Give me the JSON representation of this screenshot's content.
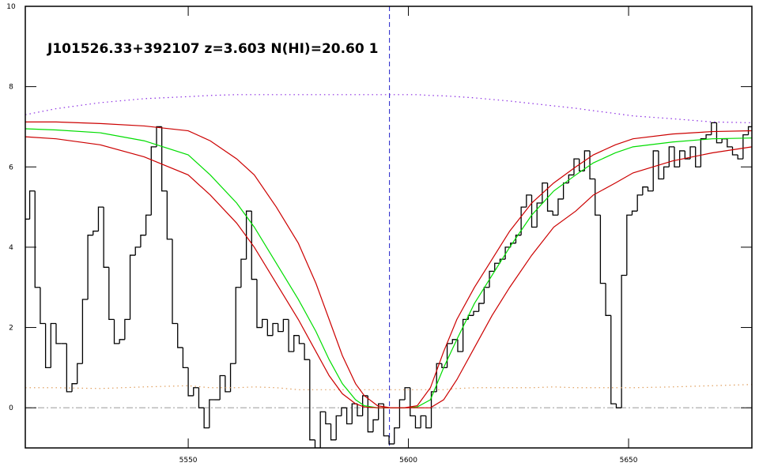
{
  "chart_data": {
    "type": "line",
    "title": "J101526.33+392107 z=3.603 N(HI)=20.60 1",
    "xlim": [
      5513,
      5678
    ],
    "ylim": [
      -1,
      10
    ],
    "xticks": [
      5550,
      5600,
      5650
    ],
    "yticks": [
      0,
      2,
      4,
      6,
      8,
      10
    ],
    "vline": {
      "value": 5595.7,
      "color": "#2020c8"
    },
    "hline": {
      "value": 0,
      "color": "#999999"
    },
    "series": [
      {
        "style": "steps",
        "color": "#000000",
        "x": [
          5513.4,
          5514.6,
          5515.8,
          5517,
          5518.2,
          5519.4,
          5520.6,
          5521.8,
          5523,
          5524.2,
          5525.4,
          5526.6,
          5527.8,
          5529,
          5530.2,
          5531.4,
          5532.6,
          5533.8,
          5535,
          5536.2,
          5537.4,
          5538.6,
          5539.8,
          5541,
          5542.2,
          5543.4,
          5544.6,
          5545.8,
          5547,
          5548.2,
          5549.4,
          5550.6,
          5551.8,
          5553,
          5554.2,
          5555.4,
          5556.6,
          5557.8,
          5559,
          5560.2,
          5561.4,
          5562.6,
          5563.8,
          5565,
          5566.2,
          5567.4,
          5568.6,
          5569.8,
          5571,
          5572.2,
          5573.4,
          5574.6,
          5575.8,
          5577,
          5578.2,
          5579.4,
          5580.6,
          5581.8,
          5583,
          5584.2,
          5585.4,
          5586.6,
          5587.8,
          5589,
          5590.2,
          5591.4,
          5592.6,
          5593.8,
          5595,
          5596.2,
          5597.4,
          5598.6,
          5599.8,
          5601,
          5602.2,
          5603.4,
          5604.6,
          5605.8,
          5607,
          5608.2,
          5609.4,
          5610.6,
          5611.8,
          5613,
          5614.2,
          5615.4,
          5616.6,
          5617.8,
          5619,
          5620.2,
          5621.4,
          5622.6,
          5623.8,
          5625,
          5626.2,
          5627.4,
          5628.6,
          5629.8,
          5631,
          5632.2,
          5633.4,
          5634.6,
          5635.8,
          5637,
          5638.2,
          5639.4,
          5640.6,
          5641.8,
          5643,
          5644.2,
          5645.4,
          5646.6,
          5647.8,
          5649,
          5650.2,
          5651.4,
          5652.6,
          5653.8,
          5655,
          5656.2,
          5657.4,
          5658.6,
          5659.8,
          5661,
          5662.2,
          5663.4,
          5664.6,
          5665.8,
          5667,
          5668.2,
          5669.4,
          5670.6,
          5671.8,
          5673,
          5674.2,
          5675.4,
          5676.6,
          5677.8
        ],
        "values": [
          4.7,
          5.4,
          3.0,
          2.1,
          1.0,
          2.1,
          1.6,
          1.6,
          0.4,
          0.6,
          1.1,
          2.7,
          4.3,
          4.4,
          5.0,
          3.5,
          2.2,
          1.6,
          1.7,
          2.2,
          3.8,
          4.0,
          4.3,
          4.8,
          6.5,
          7.0,
          5.4,
          4.2,
          2.1,
          1.5,
          1.0,
          0.3,
          0.5,
          0.0,
          -0.5,
          0.2,
          0.2,
          0.8,
          0.4,
          1.1,
          3.0,
          3.7,
          4.9,
          3.2,
          2.0,
          2.2,
          1.8,
          2.1,
          1.9,
          2.2,
          1.4,
          1.8,
          1.6,
          1.2,
          -0.8,
          -1.0,
          -0.1,
          -0.4,
          -0.8,
          -0.2,
          0.0,
          -0.4,
          0.1,
          -0.2,
          0.3,
          -0.6,
          -0.3,
          0.1,
          -0.7,
          -0.9,
          -0.5,
          0.2,
          0.5,
          -0.2,
          -0.5,
          -0.2,
          -0.5,
          0.4,
          1.1,
          1.0,
          1.6,
          1.7,
          1.4,
          2.2,
          2.3,
          2.4,
          2.6,
          3.0,
          3.4,
          3.6,
          3.7,
          4.0,
          4.1,
          4.3,
          5.0,
          5.3,
          4.5,
          5.1,
          5.6,
          4.9,
          4.8,
          5.2,
          5.6,
          5.8,
          6.2,
          5.9,
          6.4,
          5.7,
          4.8,
          3.1,
          2.3,
          0.1,
          0.0,
          3.3,
          4.8,
          4.9,
          5.3,
          5.5,
          5.4,
          6.4,
          5.7,
          6.0,
          6.5,
          6.0,
          6.4,
          6.2,
          6.5,
          6.0,
          6.7,
          6.8,
          7.1,
          6.6,
          6.7,
          6.5,
          6.3,
          6.2,
          6.8,
          7.0
        ]
      },
      {
        "style": "dotted",
        "color": "#8a2be2",
        "x": [
          5513,
          5520,
          5530,
          5540,
          5550,
          5555,
          5561,
          5565,
          5570,
          5575,
          5579,
          5582,
          5585,
          5588,
          5590,
          5593,
          5596,
          5599,
          5602,
          5605,
          5608,
          5611,
          5615,
          5619,
          5623,
          5628,
          5633,
          5638,
          5642,
          5647,
          5651,
          5660,
          5669,
          5678
        ],
        "values": [
          7.3,
          7.45,
          7.6,
          7.7,
          7.75,
          7.78,
          7.8,
          7.8,
          7.8,
          7.8,
          7.8,
          7.8,
          7.8,
          7.8,
          7.8,
          7.8,
          7.8,
          7.8,
          7.8,
          7.78,
          7.77,
          7.75,
          7.72,
          7.68,
          7.64,
          7.58,
          7.52,
          7.46,
          7.4,
          7.33,
          7.27,
          7.2,
          7.12,
          7.1
        ]
      },
      {
        "style": "dotted",
        "color": "#e0a060",
        "x": [
          5513,
          5520,
          5530,
          5540,
          5550,
          5555,
          5561,
          5565,
          5570,
          5575,
          5579,
          5582,
          5585,
          5588,
          5590,
          5593,
          5596,
          5599,
          5602,
          5605,
          5608,
          5611,
          5615,
          5619,
          5623,
          5628,
          5633,
          5638,
          5642,
          5647,
          5651,
          5660,
          5669,
          5678
        ],
        "values": [
          0.5,
          0.5,
          0.48,
          0.52,
          0.55,
          0.5,
          0.5,
          0.52,
          0.5,
          0.45,
          0.45,
          0.45,
          0.45,
          0.45,
          0.45,
          0.45,
          0.45,
          0.45,
          0.45,
          0.45,
          0.45,
          0.48,
          0.5,
          0.5,
          0.5,
          0.5,
          0.52,
          0.5,
          0.5,
          0.5,
          0.5,
          0.52,
          0.55,
          0.58
        ]
      },
      {
        "style": "solid",
        "color": "#00dd00",
        "x": [
          5513,
          5520,
          5530,
          5540,
          5550,
          5555,
          5561,
          5565,
          5570,
          5575,
          5579,
          5582,
          5585,
          5588,
          5590,
          5593,
          5596,
          5599,
          5602,
          5605,
          5608,
          5611,
          5615,
          5619,
          5623,
          5628,
          5633,
          5638,
          5642,
          5647,
          5651,
          5660,
          5669,
          5678
        ],
        "values": [
          6.95,
          6.92,
          6.85,
          6.65,
          6.3,
          5.8,
          5.1,
          4.5,
          3.6,
          2.7,
          1.9,
          1.2,
          0.6,
          0.2,
          0.05,
          0,
          0,
          0,
          0.02,
          0.2,
          1.0,
          1.7,
          2.6,
          3.3,
          4.0,
          4.8,
          5.4,
          5.8,
          6.1,
          6.35,
          6.5,
          6.62,
          6.7,
          6.72
        ]
      },
      {
        "style": "solid",
        "color": "#cc0000",
        "x": [
          5513,
          5520,
          5530,
          5540,
          5550,
          5555,
          5561,
          5565,
          5570,
          5575,
          5579,
          5582,
          5585,
          5588,
          5590,
          5593,
          5596,
          5599,
          5602,
          5605,
          5608,
          5611,
          5615,
          5619,
          5623,
          5628,
          5633,
          5638,
          5642,
          5647,
          5651,
          5660,
          5669,
          5678
        ],
        "values": [
          7.12,
          7.12,
          7.08,
          7.02,
          6.9,
          6.65,
          6.2,
          5.8,
          5.0,
          4.1,
          3.1,
          2.2,
          1.3,
          0.6,
          0.3,
          0.05,
          0,
          0,
          0.05,
          0.5,
          1.4,
          2.2,
          3.0,
          3.7,
          4.4,
          5.1,
          5.6,
          6.0,
          6.3,
          6.55,
          6.7,
          6.82,
          6.88,
          6.9
        ]
      },
      {
        "style": "solid",
        "color": "#cc0000",
        "x": [
          5513,
          5520,
          5530,
          5540,
          5550,
          5555,
          5561,
          5565,
          5570,
          5575,
          5579,
          5582,
          5585,
          5588,
          5590,
          5593,
          5596,
          5599,
          5602,
          5605,
          5608,
          5611,
          5615,
          5619,
          5623,
          5628,
          5633,
          5638,
          5642,
          5647,
          5651,
          5660,
          5669,
          5678
        ],
        "values": [
          6.75,
          6.7,
          6.55,
          6.25,
          5.8,
          5.3,
          4.6,
          4.0,
          3.1,
          2.2,
          1.4,
          0.8,
          0.35,
          0.1,
          0.02,
          0,
          0,
          0,
          0,
          0,
          0.2,
          0.7,
          1.5,
          2.3,
          3.0,
          3.8,
          4.5,
          4.9,
          5.3,
          5.6,
          5.85,
          6.15,
          6.35,
          6.5
        ]
      }
    ]
  }
}
